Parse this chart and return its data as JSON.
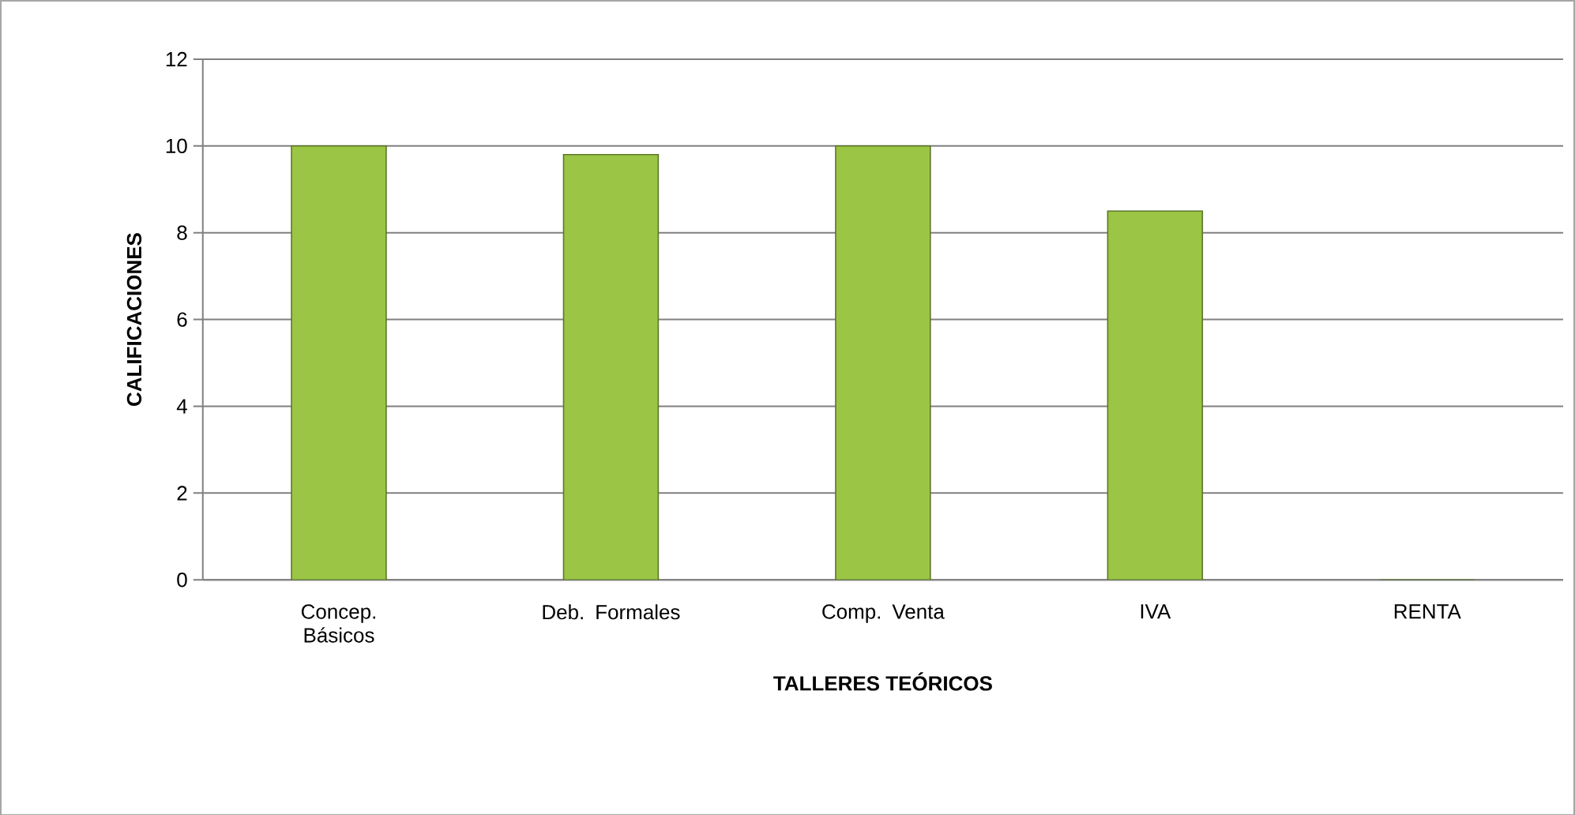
{
  "chart_data": {
    "type": "bar",
    "xlabel": "TALLERES TEÓRICOS",
    "ylabel": "CALIFICACIONES",
    "categories": [
      "Concep. Básicos",
      "Deb. Formales",
      "Comp. Venta",
      "IVA",
      "RENTA"
    ],
    "values": [
      10,
      9.8,
      10,
      8.5,
      0
    ],
    "color": "#9bc545",
    "ylim": [
      0,
      12
    ],
    "yticks": [
      0,
      2,
      4,
      6,
      8,
      10,
      12
    ],
    "grid": "y"
  }
}
